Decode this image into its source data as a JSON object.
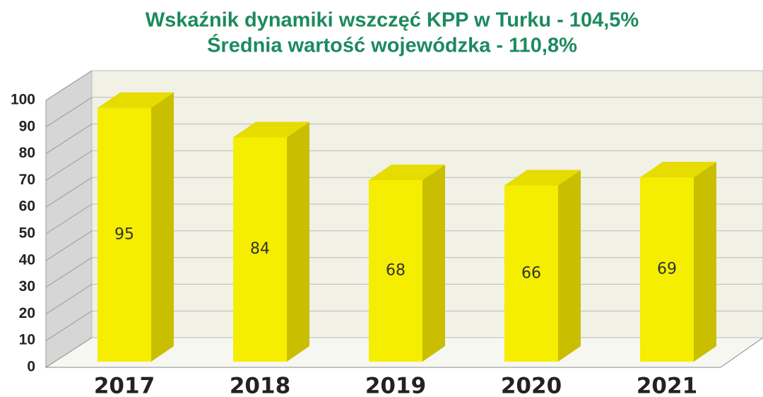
{
  "chart_data": {
    "type": "bar3d",
    "title": "Wskaźnik dynamiki wszczęć KPP w Turku - 104,5%",
    "subtitle": "Średnia wartość wojewódzka - 110,8%",
    "categories": [
      "2017",
      "2018",
      "2019",
      "2020",
      "2021"
    ],
    "values": [
      95,
      84,
      68,
      66,
      69
    ],
    "color": "#f5ee00",
    "ylim": [
      0,
      100
    ],
    "yticks": [
      0,
      10,
      20,
      30,
      40,
      50,
      60,
      70,
      80,
      90,
      100
    ],
    "grid": true
  }
}
